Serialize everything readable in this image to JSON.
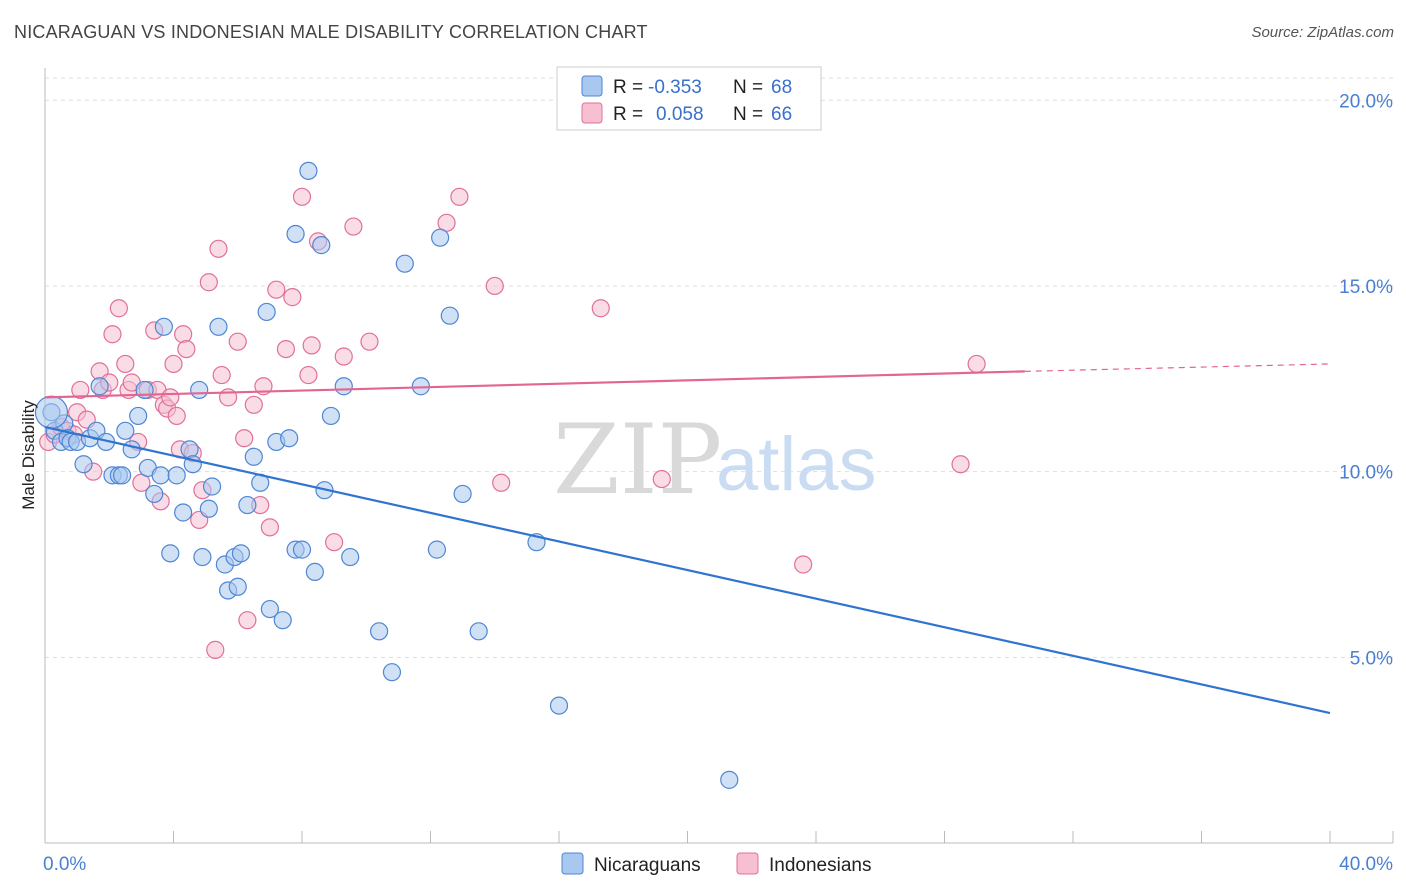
{
  "title": "NICARAGUAN VS INDONESIAN MALE DISABILITY CORRELATION CHART",
  "source": "Source: ZipAtlas.com",
  "watermark": {
    "zip": "ZIP",
    "atlas": "atlas"
  },
  "colors": {
    "blue_fill": "#a9c8ef",
    "blue_stroke": "#4f86d4",
    "blue_line": "#2f74d0",
    "pink_fill": "#f6bfd2",
    "pink_stroke": "#e0709a",
    "pink_line": "#e36592",
    "tick_label": "#4a7fd1",
    "grid": "#dddddd"
  },
  "legend": {
    "rows": [
      {
        "r_label": "R =",
        "r_value": "-0.353",
        "n_label": "N =",
        "n_value": "68"
      },
      {
        "r_label": "R =",
        "r_value": "0.058",
        "n_label": "N =",
        "n_value": "66"
      }
    ]
  },
  "chart_data": {
    "type": "scatter",
    "title": "NICARAGUAN VS INDONESIAN MALE DISABILITY CORRELATION CHART",
    "xlabel": "",
    "ylabel": "Male Disability",
    "xlim": [
      0,
      40
    ],
    "ylim": [
      0,
      20.6
    ],
    "x_tick_labels": [
      "0.0%",
      "40.0%"
    ],
    "y_ticks": [
      5,
      10,
      15,
      20
    ],
    "y_tick_labels": [
      "5.0%",
      "10.0%",
      "15.0%",
      "20.0%"
    ],
    "grid": true,
    "legend_position": "top-center",
    "series": [
      {
        "name": "Nicaraguans",
        "r": -0.353,
        "n": 68,
        "trend": {
          "x0": 0,
          "y0": 11.2,
          "x1": 40,
          "y1": 3.5
        },
        "points": [
          [
            0.2,
            11.6
          ],
          [
            0.3,
            11.1
          ],
          [
            0.5,
            10.8
          ],
          [
            0.6,
            11.3
          ],
          [
            0.7,
            10.9
          ],
          [
            0.8,
            10.8
          ],
          [
            1.0,
            10.8
          ],
          [
            1.2,
            10.2
          ],
          [
            1.4,
            10.9
          ],
          [
            1.6,
            11.1
          ],
          [
            1.7,
            12.3
          ],
          [
            1.9,
            10.8
          ],
          [
            2.1,
            9.9
          ],
          [
            2.3,
            9.9
          ],
          [
            2.5,
            11.1
          ],
          [
            2.7,
            10.6
          ],
          [
            2.9,
            11.5
          ],
          [
            3.1,
            12.2
          ],
          [
            3.2,
            10.1
          ],
          [
            3.4,
            9.4
          ],
          [
            3.6,
            9.9
          ],
          [
            3.7,
            13.9
          ],
          [
            3.9,
            7.8
          ],
          [
            4.1,
            9.9
          ],
          [
            4.3,
            8.9
          ],
          [
            4.5,
            10.6
          ],
          [
            4.6,
            10.2
          ],
          [
            4.8,
            12.2
          ],
          [
            4.9,
            7.7
          ],
          [
            5.1,
            9.0
          ],
          [
            5.2,
            9.6
          ],
          [
            5.4,
            13.9
          ],
          [
            5.6,
            7.5
          ],
          [
            5.7,
            6.8
          ],
          [
            5.9,
            7.7
          ],
          [
            6.0,
            6.9
          ],
          [
            6.1,
            7.8
          ],
          [
            6.3,
            9.1
          ],
          [
            6.5,
            10.4
          ],
          [
            6.7,
            9.7
          ],
          [
            6.9,
            14.3
          ],
          [
            7.0,
            6.3
          ],
          [
            7.2,
            10.8
          ],
          [
            7.4,
            6.0
          ],
          [
            7.6,
            10.9
          ],
          [
            7.8,
            7.9
          ],
          [
            7.8,
            16.4
          ],
          [
            8.0,
            7.9
          ],
          [
            8.2,
            18.1
          ],
          [
            8.4,
            7.3
          ],
          [
            8.6,
            16.1
          ],
          [
            8.7,
            9.5
          ],
          [
            8.9,
            11.5
          ],
          [
            9.3,
            12.3
          ],
          [
            9.5,
            7.7
          ],
          [
            10.4,
            5.7
          ],
          [
            10.8,
            4.6
          ],
          [
            11.2,
            15.6
          ],
          [
            11.7,
            12.3
          ],
          [
            12.2,
            7.9
          ],
          [
            12.3,
            16.3
          ],
          [
            12.6,
            14.2
          ],
          [
            13.0,
            9.4
          ],
          [
            13.5,
            5.7
          ],
          [
            15.3,
            8.1
          ],
          [
            16.0,
            3.7
          ],
          [
            21.3,
            1.7
          ],
          [
            2.4,
            9.9
          ]
        ]
      },
      {
        "name": "Indonesians",
        "r": 0.058,
        "n": 66,
        "trend": {
          "x0": 0,
          "y0": 12.0,
          "x1": 30.5,
          "y1": 12.7
        },
        "trend_dashed": {
          "x0": 30.5,
          "y0": 12.7,
          "x1": 40,
          "y1": 12.9
        },
        "points": [
          [
            0.1,
            10.8
          ],
          [
            0.3,
            11.0
          ],
          [
            0.5,
            11.2
          ],
          [
            0.7,
            11.1
          ],
          [
            0.9,
            11.0
          ],
          [
            1.0,
            11.6
          ],
          [
            1.1,
            12.2
          ],
          [
            1.3,
            11.4
          ],
          [
            1.5,
            10.0
          ],
          [
            1.7,
            12.7
          ],
          [
            1.8,
            12.2
          ],
          [
            2.0,
            12.4
          ],
          [
            2.1,
            13.7
          ],
          [
            2.3,
            14.4
          ],
          [
            2.5,
            12.9
          ],
          [
            2.6,
            12.2
          ],
          [
            2.7,
            12.4
          ],
          [
            2.9,
            10.8
          ],
          [
            3.0,
            9.7
          ],
          [
            3.2,
            12.2
          ],
          [
            3.4,
            13.8
          ],
          [
            3.5,
            12.2
          ],
          [
            3.6,
            9.2
          ],
          [
            3.7,
            11.8
          ],
          [
            3.8,
            11.7
          ],
          [
            3.9,
            12.0
          ],
          [
            4.0,
            12.9
          ],
          [
            4.1,
            11.5
          ],
          [
            4.2,
            10.6
          ],
          [
            4.3,
            13.7
          ],
          [
            4.4,
            13.3
          ],
          [
            4.6,
            10.5
          ],
          [
            4.8,
            8.7
          ],
          [
            4.9,
            9.5
          ],
          [
            5.1,
            15.1
          ],
          [
            5.3,
            5.2
          ],
          [
            5.4,
            16.0
          ],
          [
            5.5,
            12.6
          ],
          [
            5.7,
            12.0
          ],
          [
            6.0,
            13.5
          ],
          [
            6.2,
            10.9
          ],
          [
            6.3,
            6.0
          ],
          [
            6.5,
            11.8
          ],
          [
            6.7,
            9.1
          ],
          [
            6.8,
            12.3
          ],
          [
            7.0,
            8.5
          ],
          [
            7.2,
            14.9
          ],
          [
            7.5,
            13.3
          ],
          [
            7.7,
            14.7
          ],
          [
            8.0,
            17.4
          ],
          [
            8.2,
            12.6
          ],
          [
            8.3,
            13.4
          ],
          [
            8.5,
            16.2
          ],
          [
            9.0,
            8.1
          ],
          [
            9.3,
            13.1
          ],
          [
            9.6,
            16.6
          ],
          [
            10.1,
            13.5
          ],
          [
            12.5,
            16.7
          ],
          [
            12.9,
            17.4
          ],
          [
            14.0,
            15.0
          ],
          [
            14.2,
            9.7
          ],
          [
            17.3,
            14.4
          ],
          [
            19.2,
            9.8
          ],
          [
            23.6,
            7.5
          ],
          [
            28.5,
            10.2
          ],
          [
            29.0,
            12.9
          ]
        ]
      }
    ]
  }
}
